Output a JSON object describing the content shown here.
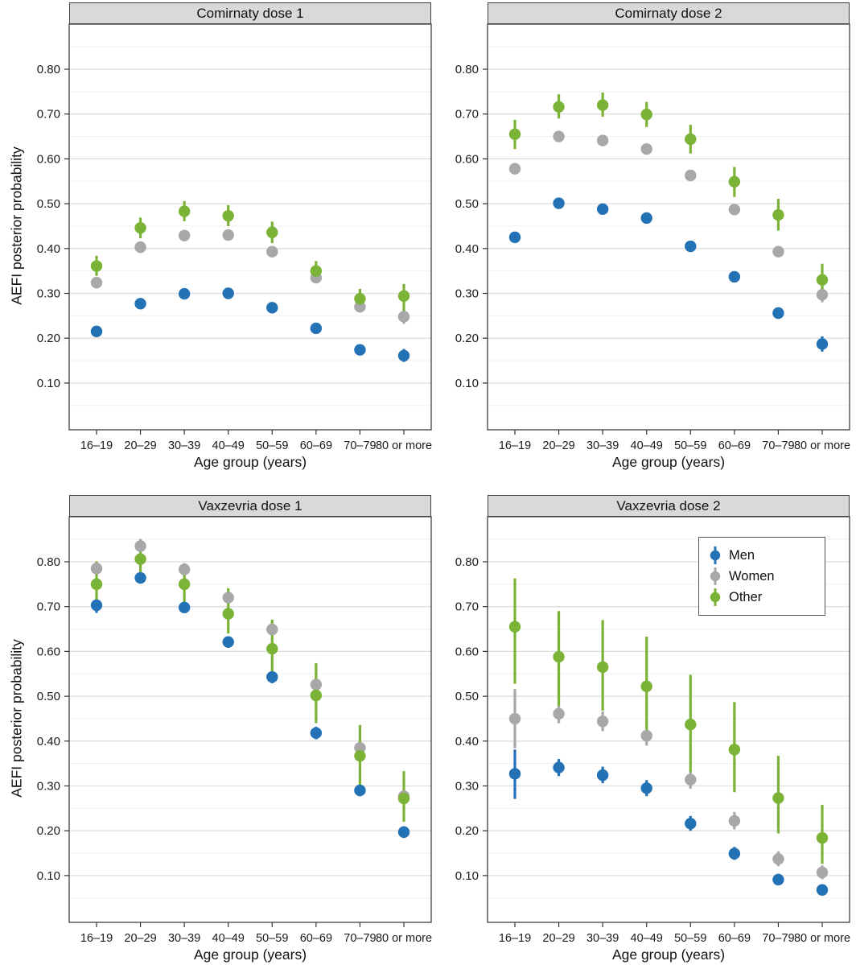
{
  "figure": {
    "y_axis_title": "AEFI posterior probability",
    "x_axis_title": "Age group (years)",
    "colors": {
      "men": "#2272b5",
      "women": "#a8a8a8",
      "other": "#7ab335"
    },
    "legend": {
      "position": "top-right-of-vaxzevria-dose-2-panel",
      "items": [
        {
          "label": "Men",
          "key": "men"
        },
        {
          "label": "Women",
          "key": "women"
        },
        {
          "label": "Other",
          "key": "other"
        }
      ]
    }
  },
  "chart_data": [
    {
      "type": "scatter",
      "title": "Comirnaty dose 1",
      "xlabel": "Age group (years)",
      "ylabel": "AEFI posterior probability",
      "ylim": [
        0.0,
        0.9
      ],
      "yticks": [
        0.1,
        0.2,
        0.3,
        0.4,
        0.5,
        0.6,
        0.7,
        0.8
      ],
      "grid": "major-and-minor",
      "categories": [
        "16–19",
        "20–29",
        "30–39",
        "40–49",
        "50–59",
        "60–69",
        "70–79",
        "80 or more"
      ],
      "series": [
        {
          "name": "Men",
          "color_key": "men",
          "values": [
            0.215,
            0.277,
            0.299,
            0.3,
            0.268,
            0.222,
            0.174,
            0.161
          ],
          "ci_low": [
            0.206,
            0.269,
            0.291,
            0.292,
            0.26,
            0.214,
            0.166,
            0.147
          ],
          "ci_high": [
            0.224,
            0.285,
            0.307,
            0.308,
            0.276,
            0.23,
            0.182,
            0.176
          ]
        },
        {
          "name": "Women",
          "color_key": "women",
          "values": [
            0.324,
            0.403,
            0.429,
            0.43,
            0.393,
            0.335,
            0.27,
            0.248
          ],
          "ci_low": [
            0.315,
            0.396,
            0.422,
            0.423,
            0.386,
            0.327,
            0.261,
            0.232
          ],
          "ci_high": [
            0.333,
            0.41,
            0.436,
            0.437,
            0.4,
            0.343,
            0.279,
            0.264
          ]
        },
        {
          "name": "Other",
          "color_key": "other",
          "values": [
            0.361,
            0.446,
            0.483,
            0.473,
            0.436,
            0.35,
            0.288,
            0.294
          ],
          "ci_low": [
            0.339,
            0.423,
            0.461,
            0.45,
            0.412,
            0.329,
            0.267,
            0.259
          ],
          "ci_high": [
            0.384,
            0.469,
            0.506,
            0.497,
            0.46,
            0.372,
            0.31,
            0.321
          ]
        }
      ]
    },
    {
      "type": "scatter",
      "title": "Comirnaty dose 2",
      "xlabel": "Age group (years)",
      "ylabel": "AEFI posterior probability",
      "ylim": [
        0.0,
        0.9
      ],
      "yticks": [
        0.1,
        0.2,
        0.3,
        0.4,
        0.5,
        0.6,
        0.7,
        0.8
      ],
      "grid": "major-and-minor",
      "categories": [
        "16–19",
        "20–29",
        "30–39",
        "40–49",
        "50–59",
        "60–69",
        "70–79",
        "80 or more"
      ],
      "series": [
        {
          "name": "Men",
          "color_key": "men",
          "values": [
            0.425,
            0.501,
            0.488,
            0.468,
            0.405,
            0.337,
            0.256,
            0.187
          ],
          "ci_low": [
            0.416,
            0.494,
            0.481,
            0.461,
            0.397,
            0.329,
            0.247,
            0.17
          ],
          "ci_high": [
            0.434,
            0.508,
            0.495,
            0.475,
            0.413,
            0.345,
            0.265,
            0.204
          ]
        },
        {
          "name": "Women",
          "color_key": "women",
          "values": [
            0.578,
            0.65,
            0.641,
            0.622,
            0.563,
            0.487,
            0.393,
            0.297
          ],
          "ci_low": [
            0.569,
            0.644,
            0.635,
            0.616,
            0.556,
            0.479,
            0.384,
            0.28
          ],
          "ci_high": [
            0.587,
            0.656,
            0.647,
            0.628,
            0.57,
            0.495,
            0.402,
            0.315
          ]
        },
        {
          "name": "Other",
          "color_key": "other",
          "values": [
            0.655,
            0.716,
            0.72,
            0.699,
            0.644,
            0.549,
            0.475,
            0.33
          ],
          "ci_low": [
            0.622,
            0.69,
            0.694,
            0.671,
            0.612,
            0.515,
            0.44,
            0.292
          ],
          "ci_high": [
            0.687,
            0.744,
            0.748,
            0.727,
            0.676,
            0.582,
            0.511,
            0.366
          ]
        }
      ]
    },
    {
      "type": "scatter",
      "title": "Vaxzevria dose 1",
      "xlabel": "Age group (years)",
      "ylabel": "AEFI posterior probability",
      "ylim": [
        0.0,
        0.9
      ],
      "yticks": [
        0.1,
        0.2,
        0.3,
        0.4,
        0.5,
        0.6,
        0.7,
        0.8
      ],
      "grid": "major-and-minor",
      "categories": [
        "16–19",
        "20–29",
        "30–39",
        "40–49",
        "50–59",
        "60–69",
        "70–79",
        "80 or more"
      ],
      "series": [
        {
          "name": "Men",
          "color_key": "men",
          "values": [
            0.703,
            0.764,
            0.698,
            0.621,
            0.543,
            0.418,
            0.29,
            0.197
          ],
          "ci_low": [
            0.686,
            0.752,
            0.686,
            0.608,
            0.529,
            0.404,
            0.277,
            0.184
          ],
          "ci_high": [
            0.719,
            0.776,
            0.71,
            0.634,
            0.557,
            0.432,
            0.303,
            0.21
          ]
        },
        {
          "name": "Women",
          "color_key": "women",
          "values": [
            0.785,
            0.835,
            0.783,
            0.72,
            0.649,
            0.526,
            0.385,
            0.277
          ],
          "ci_low": [
            0.769,
            0.818,
            0.768,
            0.705,
            0.633,
            0.51,
            0.37,
            0.262
          ],
          "ci_high": [
            0.8,
            0.851,
            0.797,
            0.735,
            0.665,
            0.542,
            0.4,
            0.292
          ]
        },
        {
          "name": "Other",
          "color_key": "other",
          "values": [
            0.75,
            0.806,
            0.75,
            0.684,
            0.606,
            0.502,
            0.367,
            0.272
          ],
          "ci_low": [
            0.704,
            0.774,
            0.709,
            0.64,
            0.549,
            0.44,
            0.302,
            0.22
          ],
          "ci_high": [
            0.801,
            0.843,
            0.791,
            0.741,
            0.671,
            0.574,
            0.436,
            0.333
          ]
        }
      ]
    },
    {
      "type": "scatter",
      "title": "Vaxzevria dose 2",
      "xlabel": "Age group (years)",
      "ylabel": "AEFI posterior probability",
      "ylim": [
        0.0,
        0.9
      ],
      "yticks": [
        0.1,
        0.2,
        0.3,
        0.4,
        0.5,
        0.6,
        0.7,
        0.8
      ],
      "grid": "major-and-minor",
      "legend_position": "top-right",
      "categories": [
        "16–19",
        "20–29",
        "30–39",
        "40–49",
        "50–59",
        "60–69",
        "70–79",
        "80 or more"
      ],
      "series": [
        {
          "name": "Men",
          "color_key": "men",
          "values": [
            0.327,
            0.341,
            0.324,
            0.295,
            0.216,
            0.149,
            0.091,
            0.068
          ],
          "ci_low": [
            0.271,
            0.322,
            0.306,
            0.277,
            0.2,
            0.135,
            0.079,
            0.057
          ],
          "ci_high": [
            0.381,
            0.36,
            0.343,
            0.313,
            0.233,
            0.164,
            0.104,
            0.08
          ]
        },
        {
          "name": "Women",
          "color_key": "women",
          "values": [
            0.45,
            0.461,
            0.444,
            0.412,
            0.314,
            0.222,
            0.137,
            0.107
          ],
          "ci_low": [
            0.384,
            0.44,
            0.422,
            0.39,
            0.294,
            0.203,
            0.121,
            0.092
          ],
          "ci_high": [
            0.516,
            0.482,
            0.466,
            0.434,
            0.335,
            0.242,
            0.154,
            0.123
          ]
        },
        {
          "name": "Other",
          "color_key": "other",
          "values": [
            0.655,
            0.588,
            0.565,
            0.522,
            0.437,
            0.381,
            0.273,
            0.184
          ],
          "ci_low": [
            0.528,
            0.479,
            0.468,
            0.411,
            0.331,
            0.286,
            0.194,
            0.126
          ],
          "ci_high": [
            0.763,
            0.69,
            0.67,
            0.633,
            0.548,
            0.487,
            0.367,
            0.258
          ]
        }
      ]
    }
  ]
}
